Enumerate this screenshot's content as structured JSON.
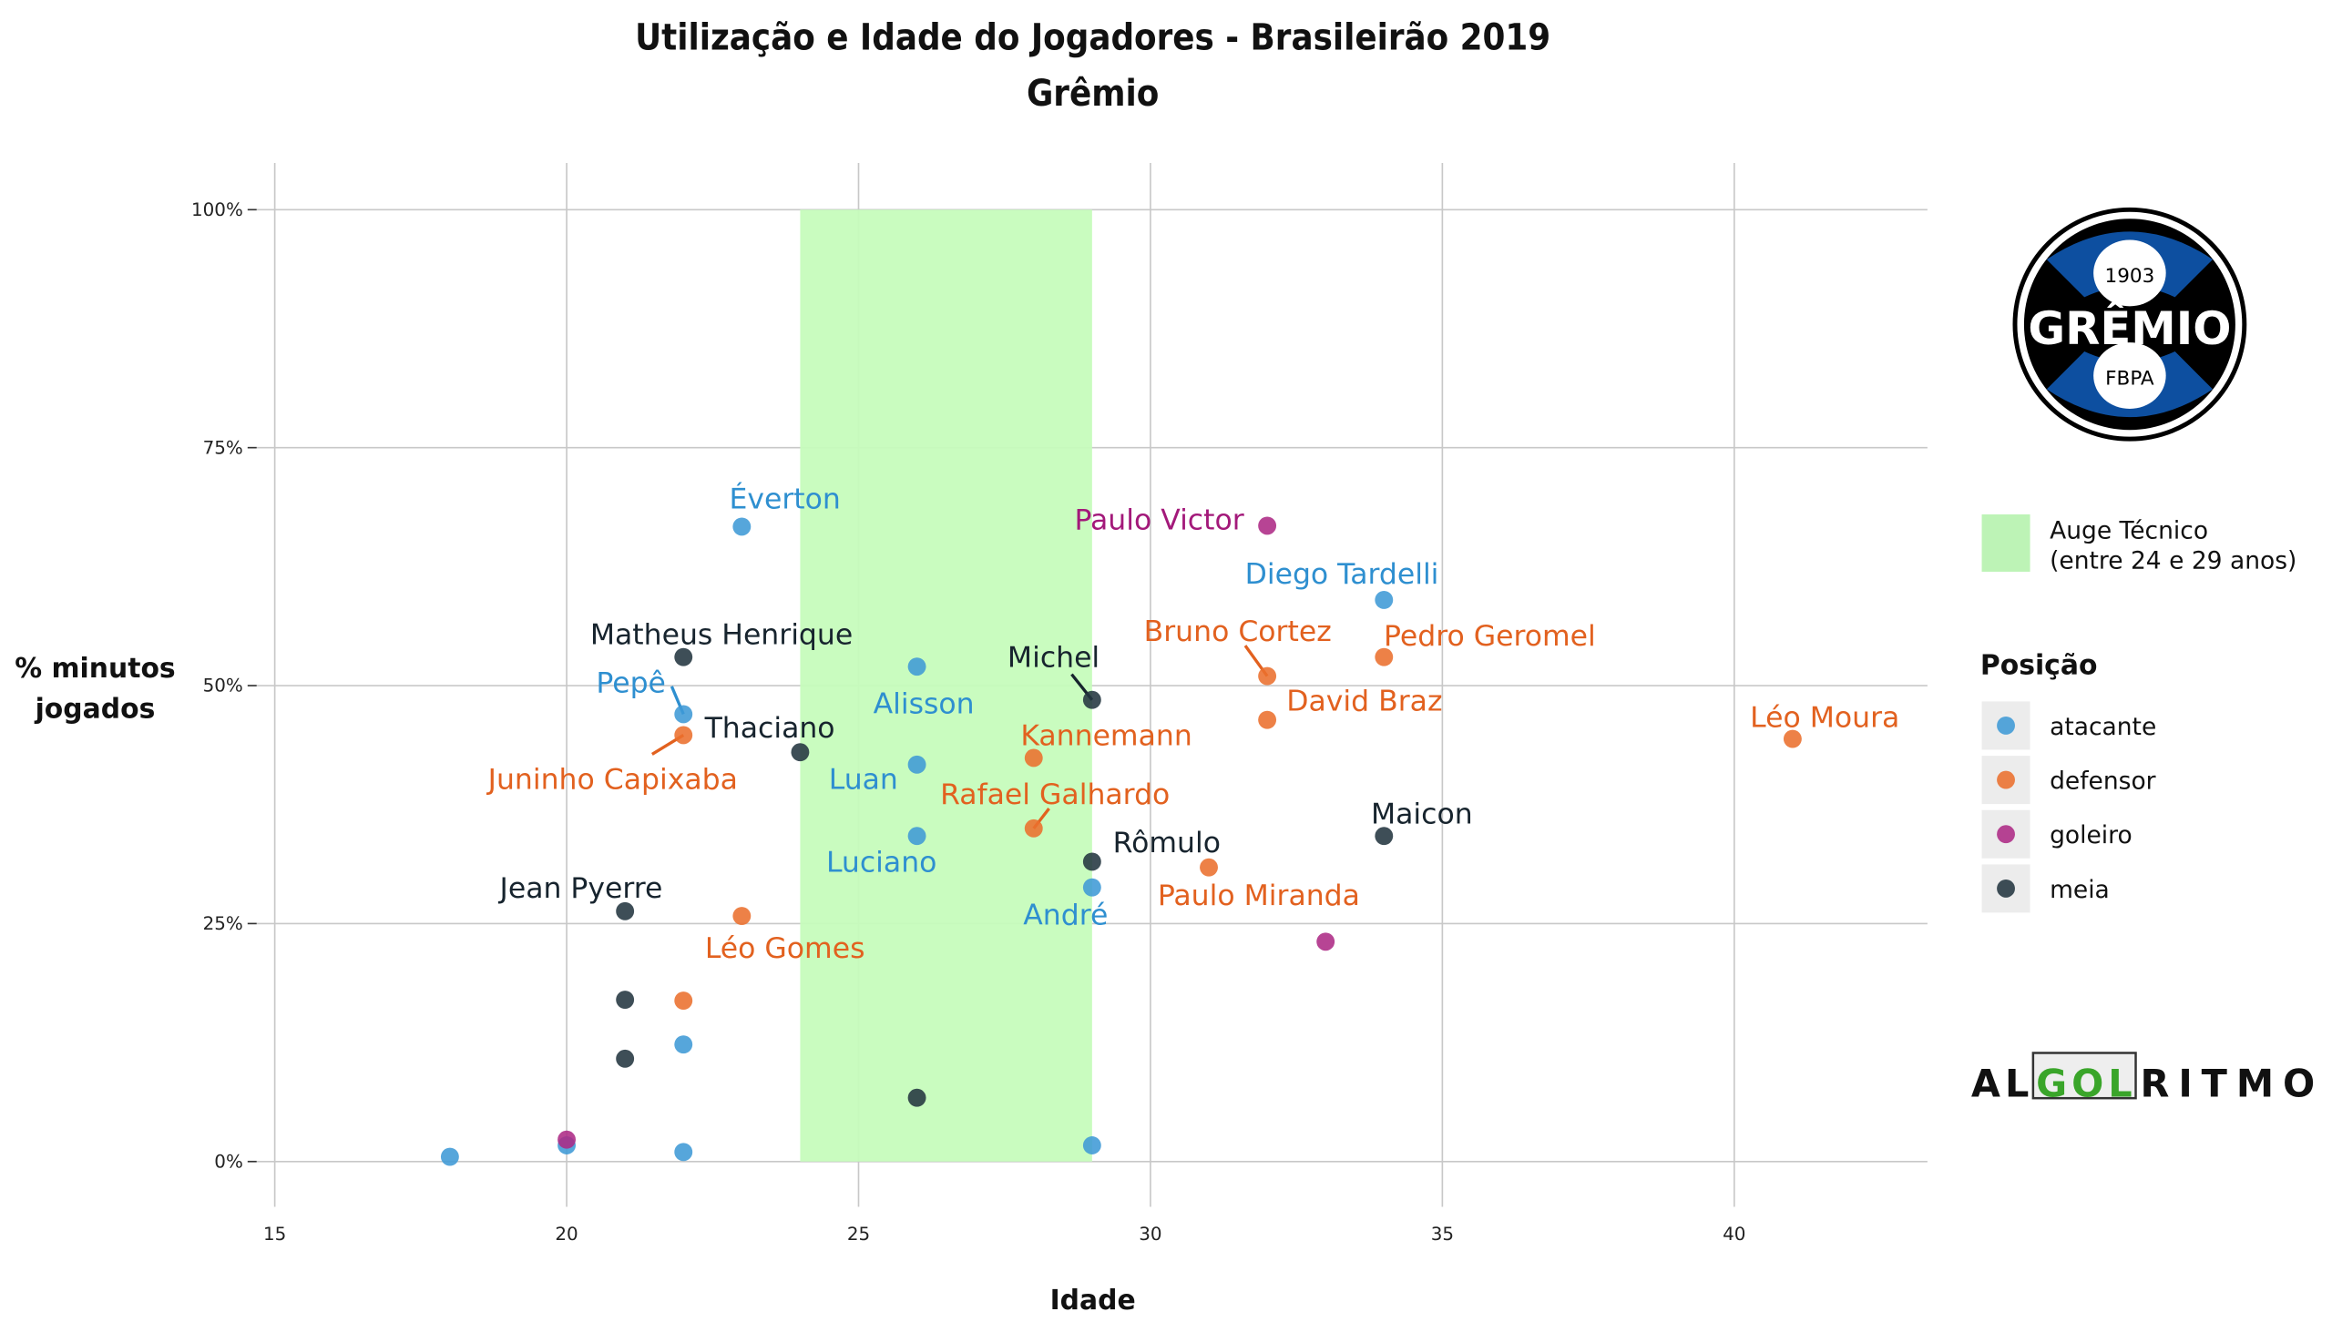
{
  "chart_data": {
    "type": "scatter",
    "title": "Utilização e Idade do Jogadores - Brasileirão 2019",
    "subtitle": "Grêmio",
    "xlabel": "Idade",
    "ylabel": [
      "% minutos",
      "jogados"
    ],
    "xlim": [
      13.8,
      43.3
    ],
    "ylim": [
      -5,
      105
    ],
    "xticks": [
      15,
      20,
      25,
      30,
      35,
      40
    ],
    "xtick_labels": [
      "15",
      "20",
      "25",
      "30",
      "35",
      "40"
    ],
    "yticks": [
      0,
      25,
      50,
      75,
      100
    ],
    "ytick_labels": [
      "0%",
      "25%",
      "50%",
      "75%",
      "100%"
    ],
    "grid": true,
    "highlight_band": {
      "x": [
        24,
        29
      ],
      "label": [
        "Auge Técnico",
        "(entre 24 e 29 anos)"
      ],
      "color": "#c6fcbc"
    },
    "legend": {
      "title": "Posição",
      "placement": "right",
      "entries": [
        {
          "key": "atacante",
          "label": "atacante",
          "color": "#3f9ad6"
        },
        {
          "key": "defensor",
          "label": "defensor",
          "color": "#ea6f2d"
        },
        {
          "key": "goleiro",
          "label": "goleiro",
          "color": "#ad2a85"
        },
        {
          "key": "meia",
          "label": "meia",
          "color": "#233540"
        }
      ]
    },
    "label_colors": {
      "atacante": "#2e8fd0",
      "defensor": "#e2611f",
      "goleiro": "#a3197a",
      "meia": "#17242e"
    },
    "points": [
      {
        "age": 18,
        "pct": 0.5,
        "pos": "atacante"
      },
      {
        "age": 20,
        "pct": 1.7,
        "pos": "atacante"
      },
      {
        "age": 20,
        "pct": 2.3,
        "pos": "goleiro"
      },
      {
        "age": 22,
        "pct": 1.0,
        "pos": "atacante"
      },
      {
        "age": 22,
        "pct": 12.3,
        "pos": "atacante"
      },
      {
        "age": 22,
        "pct": 16.9,
        "pos": "defensor"
      },
      {
        "age": 21,
        "pct": 17.0,
        "pos": "meia"
      },
      {
        "age": 21,
        "pct": 10.8,
        "pos": "meia"
      },
      {
        "age": 21,
        "pct": 26.3,
        "pos": "meia",
        "name": "Jean Pyerre"
      },
      {
        "age": 23,
        "pct": 25.8,
        "pos": "defensor",
        "name": "Léo Gomes"
      },
      {
        "age": 26,
        "pct": 6.7,
        "pos": "meia"
      },
      {
        "age": 29,
        "pct": 1.7,
        "pos": "atacante"
      },
      {
        "age": 23,
        "pct": 66.7,
        "pos": "atacante",
        "name": "Éverton"
      },
      {
        "age": 32,
        "pct": 66.8,
        "pos": "goleiro",
        "name": "Paulo Victor"
      },
      {
        "age": 34,
        "pct": 59.0,
        "pos": "atacante",
        "name": "Diego Tardelli"
      },
      {
        "age": 22,
        "pct": 53.0,
        "pos": "meia",
        "name": "Matheus Henrique"
      },
      {
        "age": 26,
        "pct": 52.0,
        "pos": "atacante",
        "name": "Alisson"
      },
      {
        "age": 32,
        "pct": 51.0,
        "pos": "defensor",
        "name": "Bruno Cortez"
      },
      {
        "age": 34,
        "pct": 53.0,
        "pos": "defensor",
        "name": "Pedro Geromel"
      },
      {
        "age": 29,
        "pct": 48.5,
        "pos": "meia",
        "name": "Michel"
      },
      {
        "age": 22,
        "pct": 47.0,
        "pos": "atacante",
        "name": "Pepê"
      },
      {
        "age": 32,
        "pct": 46.4,
        "pos": "defensor",
        "name": "David Braz"
      },
      {
        "age": 22,
        "pct": 44.8,
        "pos": "defensor",
        "name": "Juninho Capixaba"
      },
      {
        "age": 41,
        "pct": 44.4,
        "pos": "defensor",
        "name": "Léo Moura"
      },
      {
        "age": 24,
        "pct": 43.0,
        "pos": "meia",
        "name": "Thaciano"
      },
      {
        "age": 28,
        "pct": 42.4,
        "pos": "defensor",
        "name": "Kannemann"
      },
      {
        "age": 26,
        "pct": 41.7,
        "pos": "atacante",
        "name": "Luan"
      },
      {
        "age": 28,
        "pct": 35.0,
        "pos": "defensor",
        "name": "Rafael Galhardo"
      },
      {
        "age": 26,
        "pct": 34.2,
        "pos": "atacante",
        "name": "Luciano"
      },
      {
        "age": 34,
        "pct": 34.2,
        "pos": "meia",
        "name": "Maicon"
      },
      {
        "age": 29,
        "pct": 31.5,
        "pos": "meia",
        "name": "Rômulo"
      },
      {
        "age": 31,
        "pct": 30.9,
        "pos": "defensor",
        "name": "Paulo Miranda"
      },
      {
        "age": 29,
        "pct": 28.8,
        "pos": "atacante",
        "name": "André"
      },
      {
        "age": 33,
        "pct": 23.1,
        "pos": "goleiro"
      }
    ]
  },
  "logo": {
    "year": "1903",
    "name": "GRÊMIO",
    "sub": "FBPA"
  },
  "brand": {
    "left": "AL",
    "mid": "GOL",
    "right": "RITMO"
  }
}
